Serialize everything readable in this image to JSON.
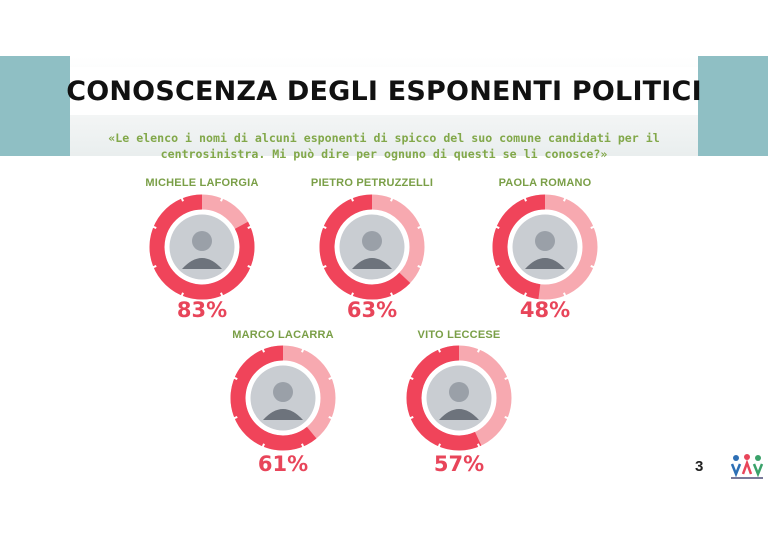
{
  "slide": {
    "title": "CONOSCENZA DEGLI ESPONENTI POLITICI",
    "question": "«Le elenco i nomi di alcuni esponenti di spicco del suo comune candidati per il centrosinistra. Mi può dire per ognuno di questi se li conosce?»",
    "page_number": "3"
  },
  "colors": {
    "filled": "#f0445a",
    "remaining": "#f7a9b0",
    "percent_text": "#e8455a",
    "name_text": "#7a9f47",
    "question_text": "#82a84a"
  },
  "chart_data": {
    "type": "pie",
    "variant": "donut",
    "title": "CONOSCENZA DEGLI ESPONENTI POLITICI",
    "unit": "%",
    "categories": [
      "MICHELE LAFORGIA",
      "PIETRO PETRUZZELLI",
      "PAOLA ROMANO",
      "MARCO LACARRA",
      "VITO LECCESE"
    ],
    "values": [
      83,
      63,
      48,
      61,
      57
    ],
    "labels": [
      "83%",
      "63%",
      "48%",
      "61%",
      "57%"
    ]
  }
}
